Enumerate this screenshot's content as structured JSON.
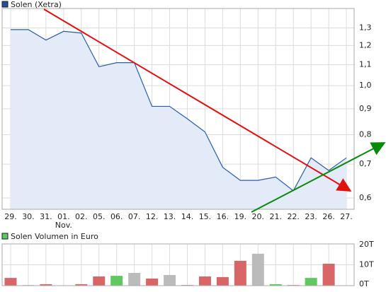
{
  "chart_data": [
    {
      "type": "area",
      "legend": "Solen (Xetra)",
      "color": "#2a5caa",
      "fill": "#e3ebf8",
      "log_scale": true,
      "grid": true,
      "categories": [
        "29.",
        "30.",
        "31.",
        "01.\nNov.",
        "02.",
        "05.",
        "06.",
        "07.",
        "12.",
        "13.",
        "14.",
        "15.",
        "16.",
        "19.",
        "20.",
        "21.",
        "22.",
        "23.",
        "26.",
        "27."
      ],
      "values": [
        1.29,
        1.29,
        1.23,
        1.28,
        1.27,
        1.09,
        1.11,
        1.11,
        0.91,
        0.91,
        0.86,
        0.81,
        0.69,
        0.65,
        0.65,
        0.66,
        0.62,
        0.72,
        0.68,
        0.72
      ],
      "ylim": [
        0.57,
        1.42
      ],
      "yticks": [
        {
          "value": 0.6,
          "label": "0,6"
        },
        {
          "value": 0.7,
          "label": "0,7"
        },
        {
          "value": 0.8,
          "label": "0,8"
        },
        {
          "value": 0.9,
          "label": "0,9"
        },
        {
          "value": 1.0,
          "label": "1,0"
        },
        {
          "value": 1.1,
          "label": "1,1"
        },
        {
          "value": 1.2,
          "label": "1,2"
        },
        {
          "value": 1.3,
          "label": "1,3"
        }
      ]
    },
    {
      "type": "bar",
      "legend": "Solen Volumen in Euro",
      "legend_color": "#5fc95f",
      "grid": true,
      "values": [
        3.7,
        0.3,
        0.7,
        0,
        0.7,
        4.4,
        4.7,
        6.1,
        3.4,
        5.1,
        0.3,
        4.4,
        4.1,
        11.9,
        15.3,
        0.7,
        0.3,
        3.7,
        10.5,
        0
      ],
      "colors": [
        "#d96666",
        "#bbbbbb",
        "#d96666",
        "#bbbbbb",
        "#d96666",
        "#d96666",
        "#5fc95f",
        "#bbbbbb",
        "#d96666",
        "#bbbbbb",
        "#d96666",
        "#d96666",
        "#d96666",
        "#d96666",
        "#bbbbbb",
        "#5fc95f",
        "#d96666",
        "#5fc95f",
        "#d96666",
        "#bbbbbb"
      ],
      "ylim": [
        0,
        20
      ],
      "yticks": [
        {
          "value": 0,
          "label": "0T"
        },
        {
          "value": 10,
          "label": "10T"
        },
        {
          "value": 20,
          "label": "20T"
        }
      ]
    }
  ]
}
